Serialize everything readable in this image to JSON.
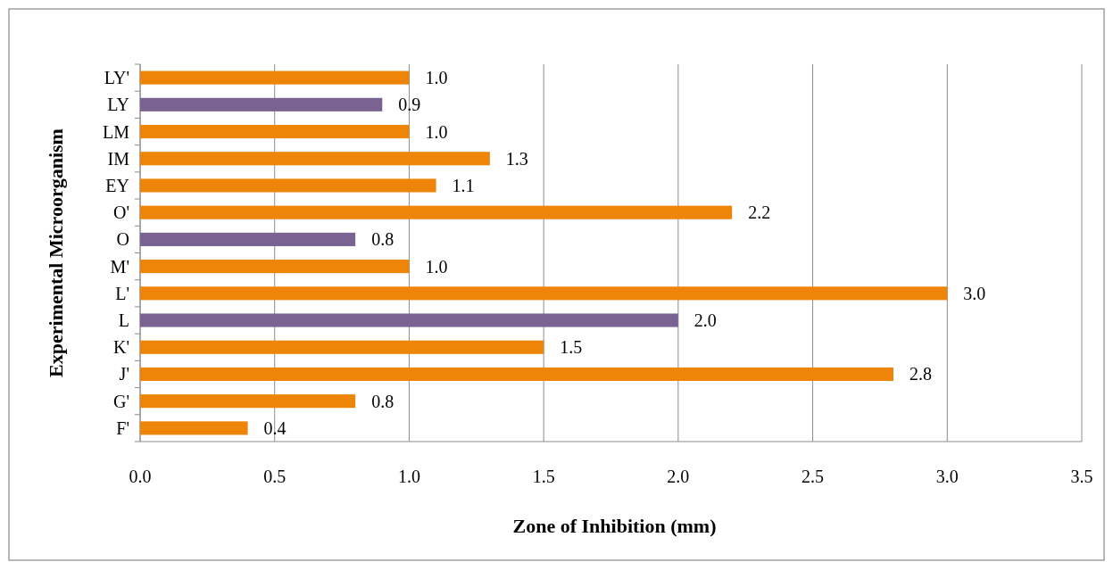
{
  "chart_data": {
    "type": "bar",
    "orientation": "horizontal",
    "xlabel": "Zone of Inhibition (mm)",
    "ylabel": "Experimental Microorganism",
    "categories": [
      "LY'",
      "LY",
      "LM",
      "IM",
      "EY",
      "O'",
      "O",
      "M'",
      "L'",
      "L",
      "K'",
      "J'",
      "G'",
      "F'"
    ],
    "values": [
      1.0,
      0.9,
      1.0,
      1.3,
      1.1,
      2.2,
      0.8,
      1.0,
      3.0,
      2.0,
      1.5,
      2.8,
      0.8,
      0.4
    ],
    "value_labels": [
      "1.0",
      "0.9",
      "1.0",
      "1.3",
      "1.1",
      "2.2",
      "0.8",
      "1.0",
      "3.0",
      "2.0",
      "1.5",
      "2.8",
      "0.8",
      "0.4"
    ],
    "colors": [
      "#ee8508",
      "#7a6392",
      "#ee8508",
      "#ee8508",
      "#ee8508",
      "#ee8508",
      "#7a6392",
      "#ee8508",
      "#ee8508",
      "#7a6392",
      "#ee8508",
      "#ee8508",
      "#ee8508",
      "#ee8508"
    ],
    "xlim": [
      0,
      3.5
    ],
    "xticks": [
      {
        "value": 0,
        "label": "0.0"
      },
      {
        "value": 0.5,
        "label": "0.5"
      },
      {
        "value": 1,
        "label": "1.0"
      },
      {
        "value": 1.5,
        "label": "1.5"
      },
      {
        "value": 2,
        "label": "2.0"
      },
      {
        "value": 2.5,
        "label": "2.5"
      },
      {
        "value": 3,
        "label": "3.0"
      },
      {
        "value": 3.5,
        "label": "3.5"
      }
    ],
    "grid": "x"
  }
}
